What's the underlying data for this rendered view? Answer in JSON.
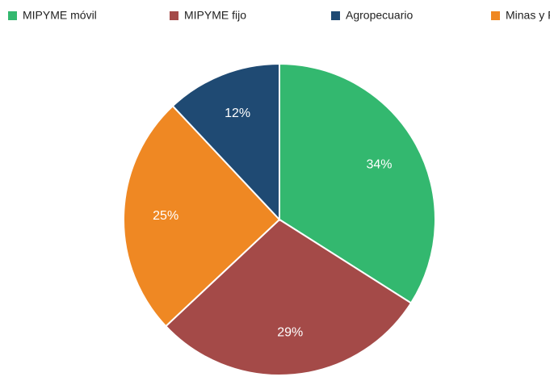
{
  "chart_data": {
    "type": "pie",
    "categories": [
      "MIPYME móvil",
      "MIPYME fijo",
      "Minas y Pesca",
      "Agropecuario"
    ],
    "values": [
      34,
      29,
      25,
      12
    ],
    "value_labels": [
      "34%",
      "29%",
      "25%",
      "12%"
    ],
    "colors": [
      "#33b86f",
      "#a44a48",
      "#ef8823",
      "#1f4a73"
    ],
    "legend": "top"
  }
}
